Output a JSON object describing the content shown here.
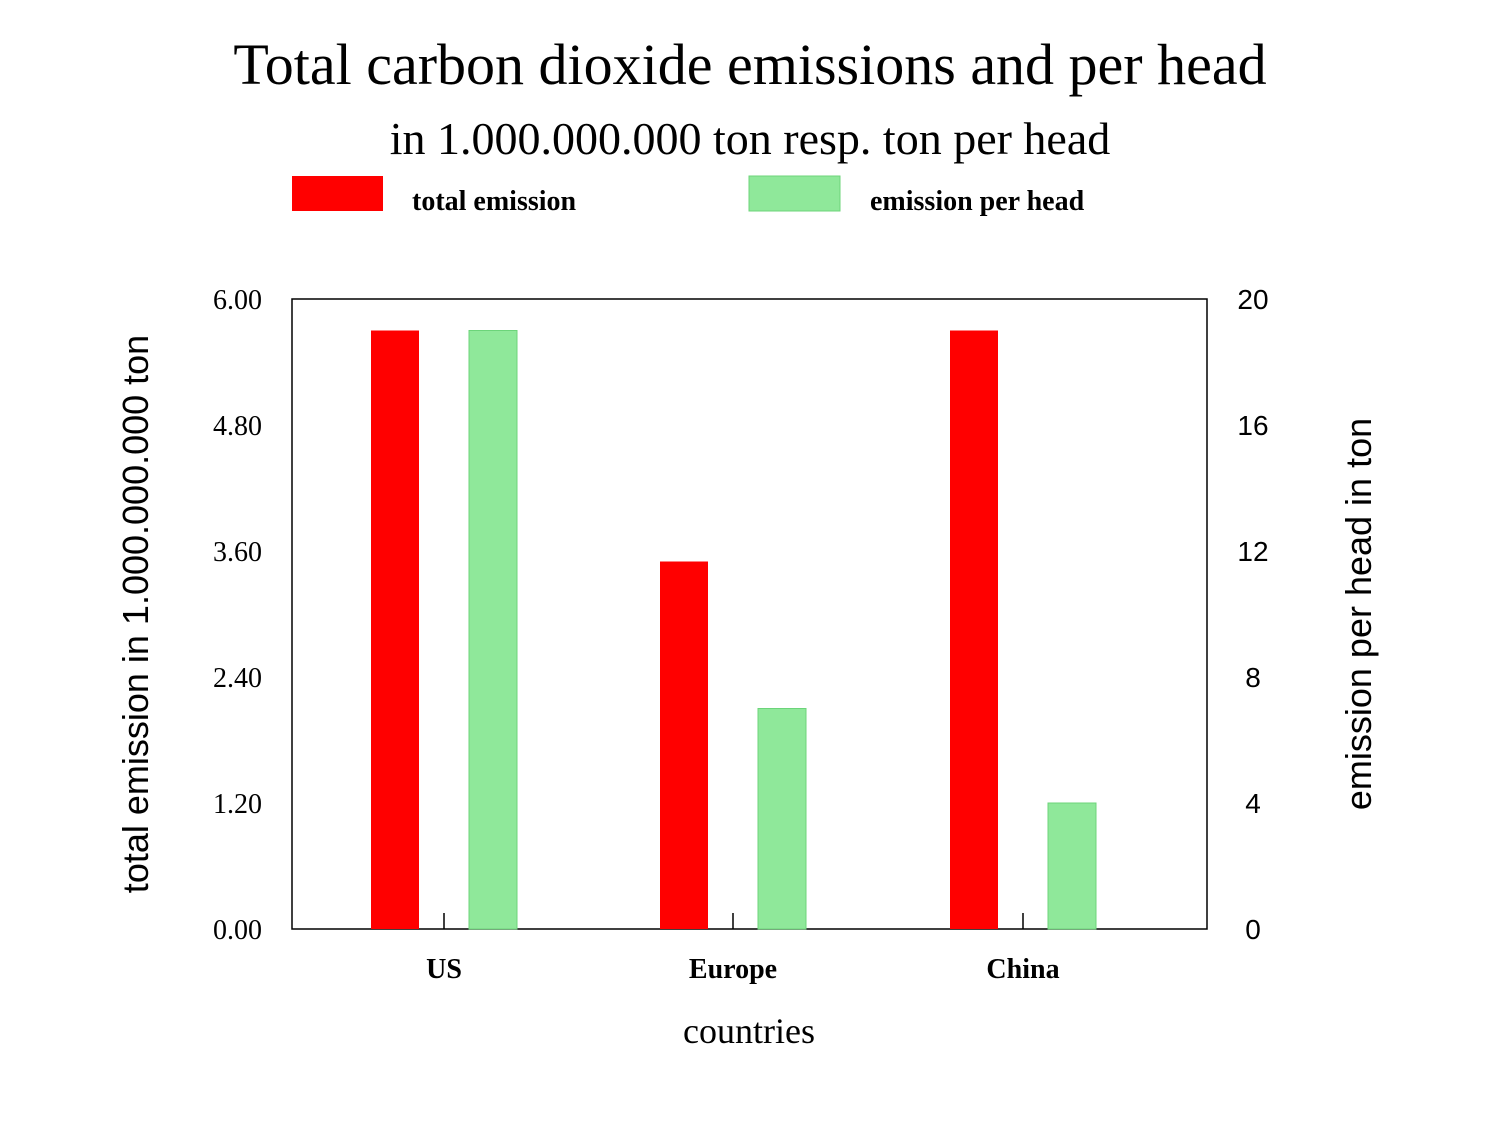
{
  "chart_data": {
    "type": "bar",
    "title": "Total carbon dioxide emissions and per head",
    "subtitle": "in 1.000.000.000 ton resp. ton per head",
    "categories": [
      "US",
      "Europe",
      "China"
    ],
    "series": [
      {
        "name": "total emission",
        "axis": "left",
        "color": "#ff0000",
        "values": [
          5.7,
          3.5,
          5.7
        ]
      },
      {
        "name": "emission per head",
        "axis": "right",
        "color": "#8fe89a",
        "values": [
          19,
          7,
          4
        ]
      }
    ],
    "xlabel": "countries",
    "ylabel_left": "total emission in 1.000.000.000 ton",
    "ylabel_right": "emission per head in ton",
    "ylim_left": [
      0,
      6
    ],
    "ylim_right": [
      0,
      20
    ],
    "yticks_left": [
      "0.00",
      "1.20",
      "2.40",
      "3.60",
      "4.80",
      "6.00"
    ],
    "yticks_right": [
      "0",
      "4",
      "8",
      "12",
      "16",
      "20"
    ],
    "legend_position": "top",
    "grid": false
  }
}
